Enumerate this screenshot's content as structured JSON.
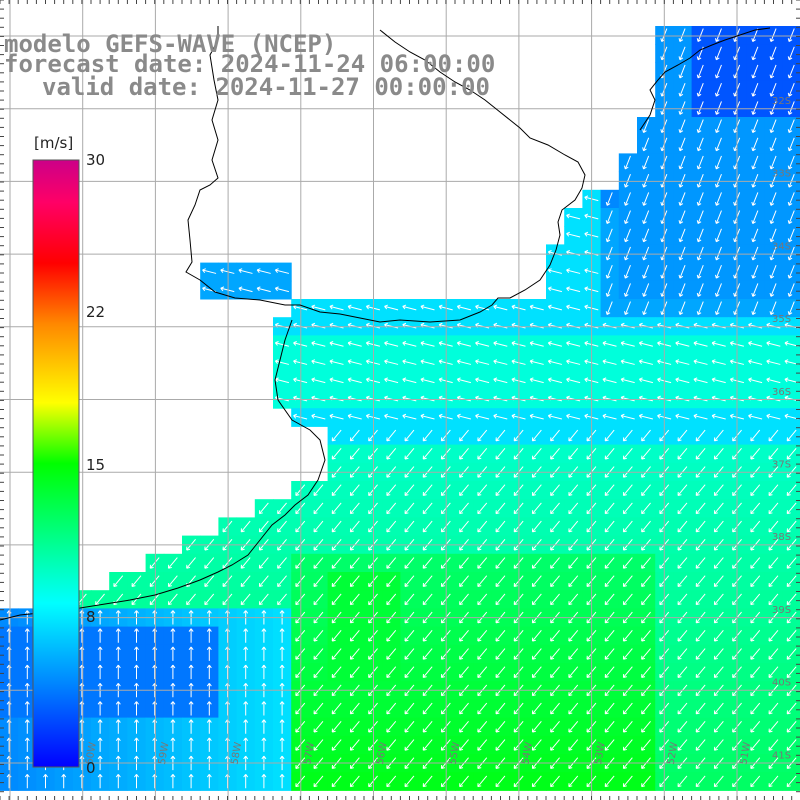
{
  "title": {
    "line1": "modelo GEFS-WAVE (NCEP)",
    "line2": "forecast date: 2024-11-24 06:00:00",
    "line3": "valid date: 2024-11-27 00:00:00"
  },
  "colorbar": {
    "unit": "[m/s]",
    "ticks": [
      {
        "value": 30,
        "label": "30"
      },
      {
        "value": 22,
        "label": "22"
      },
      {
        "value": 15,
        "label": "15"
      },
      {
        "value": 8,
        "label": "8"
      },
      {
        "value": 0,
        "label": "0"
      }
    ],
    "min": 0,
    "max": 30,
    "colors": [
      "#0000ff",
      "#0088ff",
      "#00ffff",
      "#00ff00",
      "#ffff00",
      "#ff8800",
      "#ff0000",
      "#ff0066",
      "#cc0088"
    ]
  },
  "lat_labels": [
    "32S",
    "33S",
    "34S",
    "35S",
    "36S",
    "37S",
    "38S",
    "39S",
    "40S",
    "41S"
  ],
  "lon_labels": [
    "60W",
    "59W",
    "58W",
    "57W",
    "56W",
    "55W",
    "54W",
    "53W",
    "52W",
    "51W"
  ],
  "colors": {
    "land": "#ffffff",
    "coast": "#000000",
    "grid": "#aaaaaa",
    "arrow": "#ffffff",
    "text": "#8a8a8a"
  }
}
